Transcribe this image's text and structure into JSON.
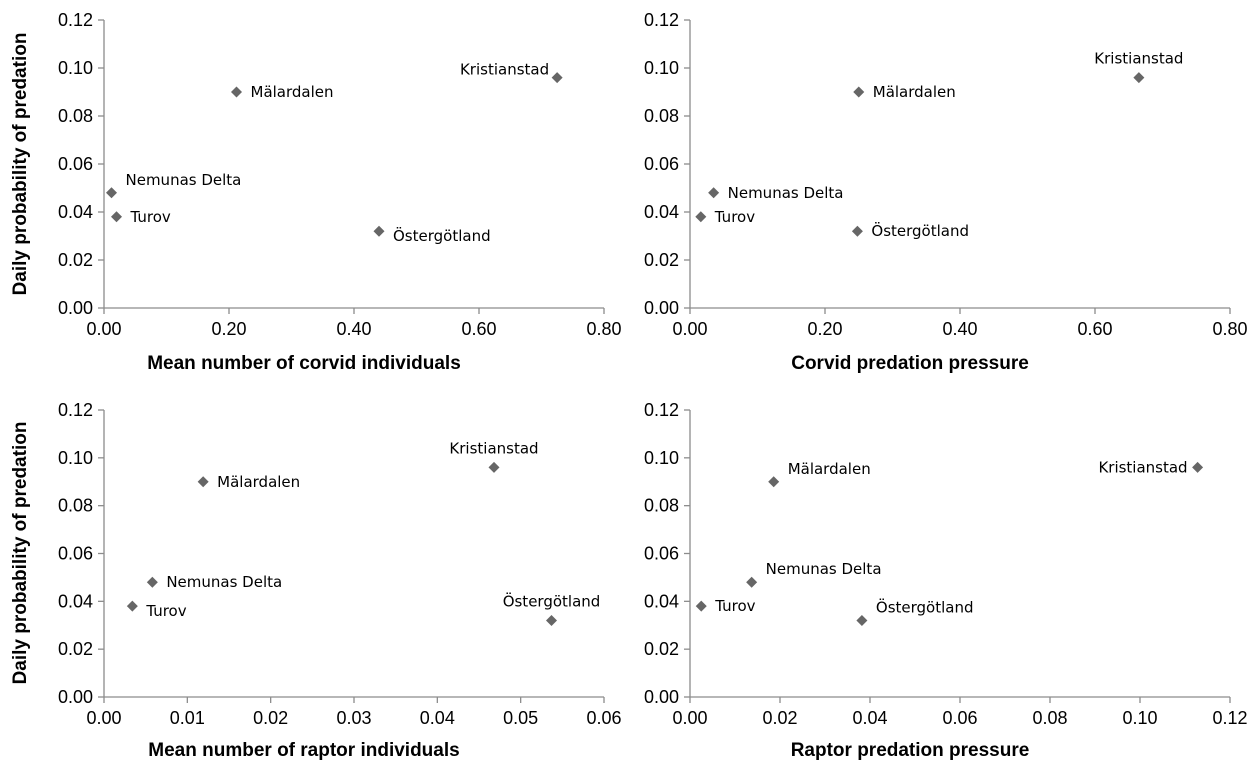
{
  "chart_data": [
    {
      "type": "scatter",
      "title": "",
      "xlabel": "Mean number of corvid individuals",
      "ylabel": "Daily probability of predation",
      "xlim": [
        0,
        0.8
      ],
      "ylim": [
        0,
        0.12
      ],
      "xticks": [
        "0.00",
        "0.20",
        "0.40",
        "0.60",
        "0.80"
      ],
      "yticks": [
        "0.00",
        "0.02",
        "0.04",
        "0.06",
        "0.08",
        "0.10",
        "0.12"
      ],
      "marker_color": "#666666",
      "points": [
        {
          "label": "Kristianstad",
          "x": 0.725,
          "y": 0.096,
          "label_pos": "upper-left"
        },
        {
          "label": "Mälardalen",
          "x": 0.212,
          "y": 0.09,
          "label_pos": "right"
        },
        {
          "label": "Nemunas Delta",
          "x": 0.012,
          "y": 0.048,
          "label_pos": "upper-right"
        },
        {
          "label": "Turov",
          "x": 0.02,
          "y": 0.038,
          "label_pos": "right"
        },
        {
          "label": "Östergötland",
          "x": 0.44,
          "y": 0.032,
          "label_pos": "lower-right"
        }
      ]
    },
    {
      "type": "scatter",
      "title": "",
      "xlabel": "Corvid predation pressure",
      "ylabel": "",
      "xlim": [
        0,
        0.8
      ],
      "ylim": [
        0,
        0.12
      ],
      "xticks": [
        "0.00",
        "0.20",
        "0.40",
        "0.60",
        "0.80"
      ],
      "yticks": [
        "0.00",
        "0.02",
        "0.04",
        "0.06",
        "0.08",
        "0.10",
        "0.12"
      ],
      "marker_color": "#666666",
      "points": [
        {
          "label": "Kristianstad",
          "x": 0.665,
          "y": 0.096,
          "label_pos": "above"
        },
        {
          "label": "Mälardalen",
          "x": 0.25,
          "y": 0.09,
          "label_pos": "right"
        },
        {
          "label": "Nemunas Delta",
          "x": 0.035,
          "y": 0.048,
          "label_pos": "right"
        },
        {
          "label": "Turov",
          "x": 0.016,
          "y": 0.038,
          "label_pos": "right"
        },
        {
          "label": "Östergötland",
          "x": 0.248,
          "y": 0.032,
          "label_pos": "right"
        }
      ]
    },
    {
      "type": "scatter",
      "title": "",
      "xlabel": "Mean number of raptor individuals",
      "ylabel": "Daily probability of predation",
      "xlim": [
        0,
        0.06
      ],
      "ylim": [
        0,
        0.12
      ],
      "xticks": [
        "0.00",
        "0.01",
        "0.02",
        "0.03",
        "0.04",
        "0.05",
        "0.06"
      ],
      "yticks": [
        "0.00",
        "0.02",
        "0.04",
        "0.06",
        "0.08",
        "0.10",
        "0.12"
      ],
      "marker_color": "#666666",
      "points": [
        {
          "label": "Kristianstad",
          "x": 0.0468,
          "y": 0.096,
          "label_pos": "above"
        },
        {
          "label": "Mälardalen",
          "x": 0.0119,
          "y": 0.09,
          "label_pos": "right"
        },
        {
          "label": "Nemunas Delta",
          "x": 0.0058,
          "y": 0.048,
          "label_pos": "right"
        },
        {
          "label": "Turov",
          "x": 0.0034,
          "y": 0.038,
          "label_pos": "lower-right"
        },
        {
          "label": "Östergötland",
          "x": 0.0537,
          "y": 0.032,
          "label_pos": "above"
        }
      ]
    },
    {
      "type": "scatter",
      "title": "",
      "xlabel": "Raptor predation pressure",
      "ylabel": "",
      "xlim": [
        0,
        0.12
      ],
      "ylim": [
        0,
        0.12
      ],
      "xticks": [
        "0.00",
        "0.02",
        "0.04",
        "0.06",
        "0.08",
        "0.10",
        "0.12"
      ],
      "yticks": [
        "0.00",
        "0.02",
        "0.04",
        "0.06",
        "0.08",
        "0.10",
        "0.12"
      ],
      "marker_color": "#666666",
      "points": [
        {
          "label": "Kristianstad",
          "x": 0.1128,
          "y": 0.096,
          "label_pos": "left"
        },
        {
          "label": "Mälardalen",
          "x": 0.0186,
          "y": 0.09,
          "label_pos": "upper-right"
        },
        {
          "label": "Nemunas Delta",
          "x": 0.0137,
          "y": 0.048,
          "label_pos": "upper-right"
        },
        {
          "label": "Turov",
          "x": 0.0025,
          "y": 0.038,
          "label_pos": "right"
        },
        {
          "label": "Östergötland",
          "x": 0.0382,
          "y": 0.032,
          "label_pos": "upper-right"
        }
      ]
    }
  ]
}
